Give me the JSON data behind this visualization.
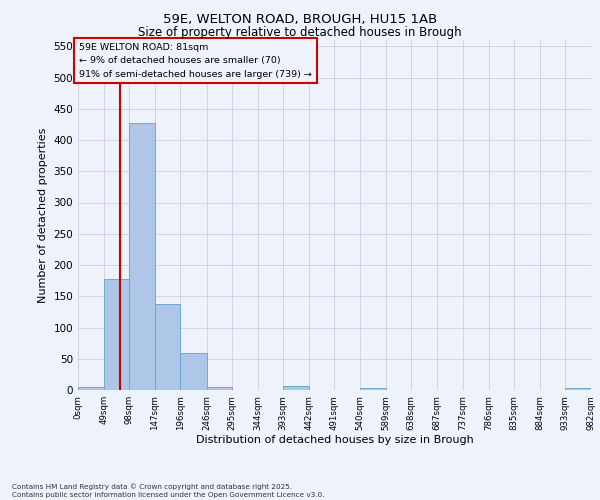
{
  "title_line1": "59E, WELTON ROAD, BROUGH, HU15 1AB",
  "title_line2": "Size of property relative to detached houses in Brough",
  "xlabel": "Distribution of detached houses by size in Brough",
  "ylabel": "Number of detached properties",
  "bar_color": "#aec6e8",
  "bar_edge_color": "#6aaad4",
  "background_color": "#eef2fb",
  "grid_color": "#c8d0e0",
  "annotation_box_color": "#cc0000",
  "annotation_line_color": "#cc0000",
  "property_line_x": 81,
  "annotation_text_line1": "59E WELTON ROAD: 81sqm",
  "annotation_text_line2": "← 9% of detached houses are smaller (70)",
  "annotation_text_line3": "91% of semi-detached houses are larger (739) →",
  "footnote_line1": "Contains HM Land Registry data © Crown copyright and database right 2025.",
  "footnote_line2": "Contains public sector information licensed under the Open Government Licence v3.0.",
  "bin_edges": [
    0,
    49,
    98,
    147,
    196,
    246,
    295,
    344,
    393,
    442,
    491,
    540,
    589,
    638,
    687,
    737,
    786,
    835,
    884,
    933,
    982
  ],
  "bin_labels": [
    "0sqm",
    "49sqm",
    "98sqm",
    "147sqm",
    "196sqm",
    "246sqm",
    "295sqm",
    "344sqm",
    "393sqm",
    "442sqm",
    "491sqm",
    "540sqm",
    "589sqm",
    "638sqm",
    "687sqm",
    "737sqm",
    "786sqm",
    "835sqm",
    "884sqm",
    "933sqm",
    "982sqm"
  ],
  "bar_heights": [
    5,
    178,
    428,
    137,
    59,
    5,
    0,
    0,
    6,
    0,
    0,
    3,
    0,
    0,
    0,
    0,
    0,
    0,
    0,
    3
  ],
  "ylim": [
    0,
    560
  ],
  "yticks": [
    0,
    50,
    100,
    150,
    200,
    250,
    300,
    350,
    400,
    450,
    500,
    550
  ],
  "figsize": [
    6.0,
    5.0
  ],
  "dpi": 100
}
